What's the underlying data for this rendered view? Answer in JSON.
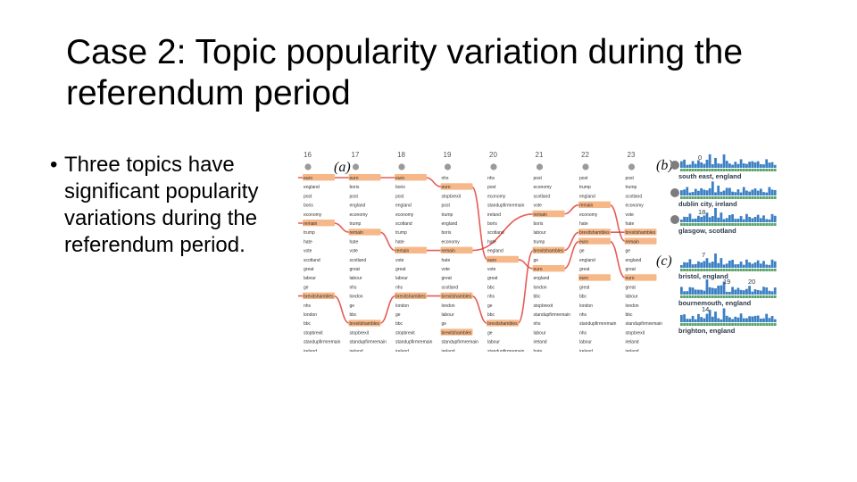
{
  "title": "Case 2: Topic popularity variation during the referendum period",
  "bullets": [
    "Three topics have significant popularity variations during the referendum period."
  ],
  "figure": {
    "panel_a": {
      "label": "(a)",
      "dates": [
        "16",
        "17",
        "18",
        "19",
        "20",
        "21",
        "22",
        "23"
      ],
      "columns": [
        [
          "euro",
          "england",
          "post",
          "boris",
          "economy",
          "remain",
          "trump",
          "hate",
          "vote",
          "scotland",
          "great",
          "labour",
          "ge",
          "brexitshambles",
          "nhs",
          "london",
          "bbc",
          "stopbrexit",
          "standupfirmremain",
          "ireland"
        ],
        [
          "euro",
          "boris",
          "post",
          "england",
          "economy",
          "trump",
          "remain",
          "hate",
          "vote",
          "scotland",
          "great",
          "labour",
          "nhs",
          "london",
          "ge",
          "bbc",
          "brexitshambles",
          "stopbrexit",
          "standupfirmremain",
          "ireland"
        ],
        [
          "euro",
          "boris",
          "post",
          "england",
          "economy",
          "scotland",
          "trump",
          "hate",
          "remain",
          "vote",
          "great",
          "labour",
          "nhs",
          "brexitshambles",
          "london",
          "ge",
          "bbc",
          "stopbrexit",
          "standupfirmremain",
          "ireland"
        ],
        [
          "nhs",
          "euro",
          "stopbrexit",
          "post",
          "trump",
          "england",
          "boris",
          "economy",
          "remain",
          "hate",
          "vote",
          "great",
          "scotland",
          "brexitshambles",
          "london",
          "labour",
          "ge",
          "brexitshambles",
          "standupfirmremain",
          "ireland"
        ],
        [
          "nhs",
          "post",
          "economy",
          "standupfirmremain",
          "ireland",
          "boris",
          "scotland",
          "hate",
          "england",
          "euro",
          "vote",
          "great",
          "bbc",
          "nhs",
          "ge",
          "bbc",
          "brexitshambles",
          "ge",
          "labour",
          "standupfirmremain"
        ],
        [
          "post",
          "economy",
          "scotland",
          "vote",
          "remain",
          "boris",
          "labour",
          "trump",
          "brexitshambles",
          "ge",
          "euro",
          "england",
          "london",
          "bbc",
          "stopbrexit",
          "standupfirmremain",
          "nhs",
          "labour",
          "ireland",
          "hate"
        ],
        [
          "post",
          "trump",
          "england",
          "remain",
          "economy",
          "hate",
          "brexitshambles",
          "euro",
          "ge",
          "england",
          "great",
          "euro",
          "great",
          "bbc",
          "london",
          "nhs",
          "standupfirmremain",
          "nhs",
          "labour",
          "ireland"
        ],
        [
          "post",
          "trump",
          "scotland",
          "economy",
          "vote",
          "hate",
          "brexitshambles",
          "remain",
          "ge",
          "england",
          "great",
          "euro",
          "great",
          "labour",
          "london",
          "bbc",
          "standupfirmremain",
          "stopbrexit",
          "ireland",
          "ireland"
        ]
      ]
    },
    "panel_b": {
      "label": "(b)",
      "rows": [
        {
          "number": "0",
          "location": "south east, england"
        },
        {
          "number": "",
          "location": "dublin city, ireland"
        },
        {
          "number": "18",
          "location": "glasgow, scotland"
        }
      ]
    },
    "panel_c": {
      "label": "(c)",
      "rows": [
        {
          "number": "7",
          "location": "bristol, england"
        },
        {
          "number": "19",
          "number2": "20",
          "location": "bournemouth, england"
        },
        {
          "number": "14",
          "location": "brighton, england"
        }
      ]
    },
    "colors": {
      "highlight": "#f6b888",
      "flow": "#e0403a",
      "bar_blue": "#3b7fc4",
      "bar_green": "#5aa46a",
      "dot": "#9a9a9a"
    }
  }
}
